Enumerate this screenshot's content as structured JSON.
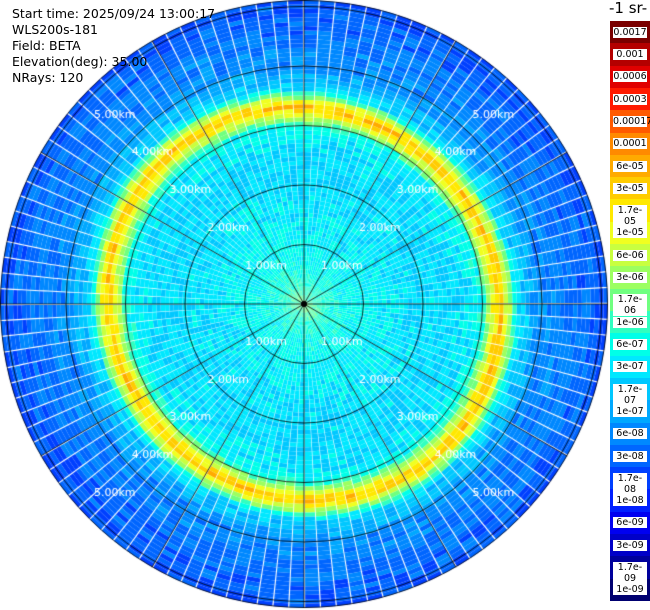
{
  "header": {
    "start_time": "Start time: 2025/09/24 13:00:17",
    "instrument": "WLS200s-181",
    "field": "Field: BETA",
    "elevation": "Elevation(deg): 35.00",
    "nrays": "NRays: 120"
  },
  "colorbar": {
    "unit_label": "-1 sr-",
    "ticks": [
      "0.0017",
      "0.001",
      "0.0006",
      "0.0003",
      "0.00017",
      "0.0001",
      "6e-05",
      "3e-05",
      "1.7e-05",
      "1e-05",
      "6e-06",
      "3e-06",
      "1.7e-06",
      "1e-06",
      "6e-07",
      "3e-07",
      "1.7e-07",
      "1e-07",
      "6e-08",
      "3e-08",
      "1.7e-08",
      "1e-08",
      "6e-09",
      "3e-09",
      "1.7e-09",
      "1e-09"
    ],
    "colors": [
      "#7a0000",
      "#b40000",
      "#e00000",
      "#ff1a00",
      "#ff5a00",
      "#ff8a00",
      "#ffaa00",
      "#ffcc00",
      "#ffe800",
      "#f0ff20",
      "#c8ff40",
      "#9cff60",
      "#70ff80",
      "#30ffc0",
      "#00ffe8",
      "#00e8ff",
      "#00c8ff",
      "#00a8ff",
      "#0088ff",
      "#0066ff",
      "#0040ff",
      "#0020ff",
      "#0000f0",
      "#0000c8",
      "#00009c",
      "#000070"
    ]
  },
  "chart_data": {
    "type": "ppi",
    "field": "BETA",
    "nrays": 120,
    "range_rings_km": [
      1,
      2,
      3,
      4,
      5
    ],
    "ring_labels": [
      "1.00km",
      "2.00km",
      "3.00km",
      "4.00km",
      "5.00km"
    ],
    "radial_spokes_deg": [
      0,
      30,
      60,
      90,
      120,
      150,
      180,
      210,
      240,
      270,
      300,
      330
    ],
    "color_scale": "log",
    "value_range": [
      1e-09,
      0.0017
    ],
    "profile_range_km": [
      0.0,
      0.3,
      0.6,
      1.0,
      1.5,
      2.0,
      2.5,
      2.8,
      3.0,
      3.15,
      3.3,
      3.45,
      3.6,
      4.0,
      4.5,
      5.0,
      5.1
    ],
    "profile_log10_beta": [
      -5.8,
      -6.1,
      -6.3,
      -6.4,
      -6.5,
      -6.6,
      -6.6,
      -6.5,
      -6.2,
      -5.2,
      -4.4,
      -5.4,
      -6.6,
      -7.2,
      -7.4,
      -7.6,
      -7.6
    ]
  }
}
